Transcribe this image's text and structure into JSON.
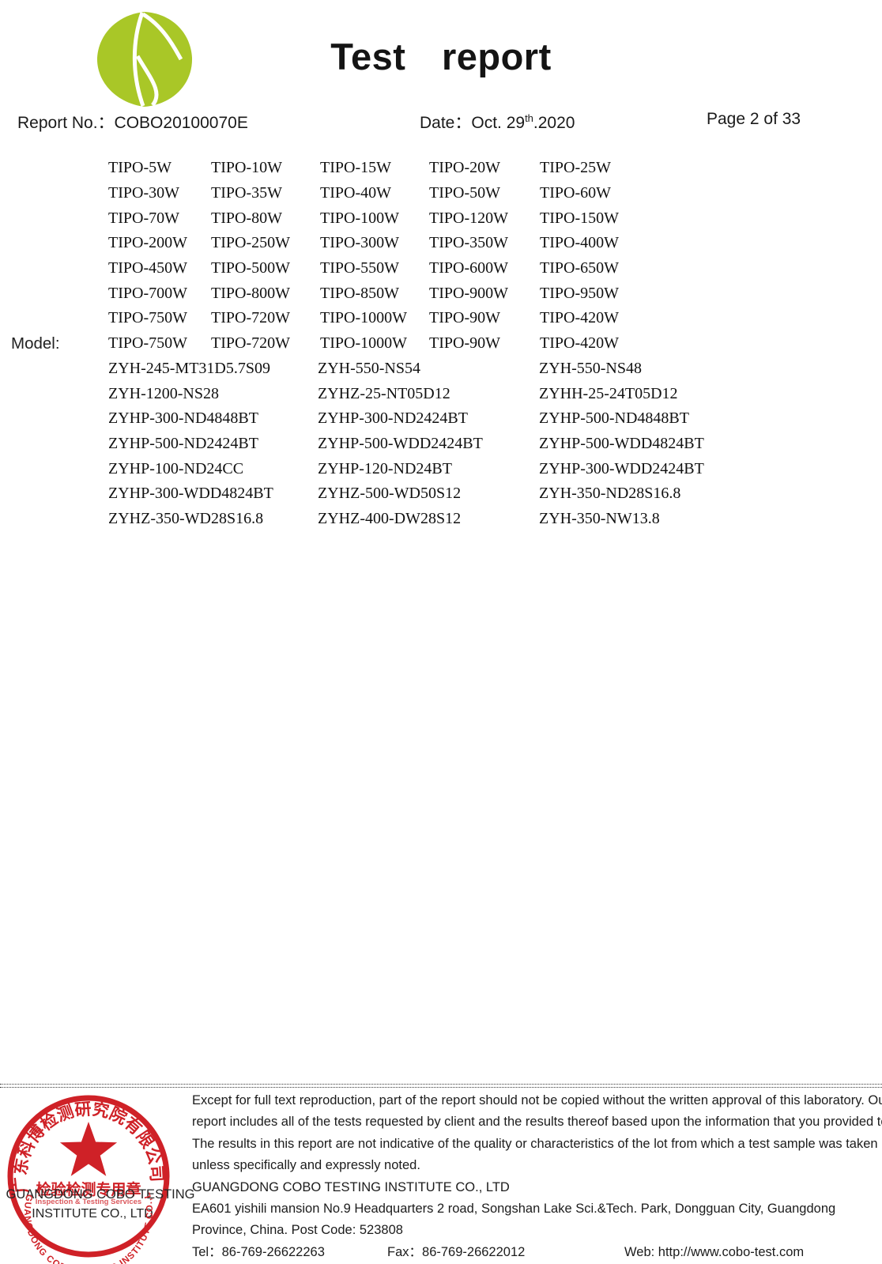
{
  "header": {
    "title": "Test  report",
    "report_no_label": "Report No.：",
    "report_no": "COBO20100070E",
    "date_label": "Date：",
    "date_prefix": "Oct. 29",
    "date_superscript": "th",
    "date_suffix": ".2020",
    "page_info": "Page 2 of 33"
  },
  "logo": {
    "name": "cobo-green-leaf-logo",
    "green": "#a9c727"
  },
  "model_section": {
    "label": "Model:",
    "rows5": [
      [
        "TIPO-5W",
        "TIPO-10W",
        "TIPO-15W",
        "TIPO-20W",
        "TIPO-25W"
      ],
      [
        "TIPO-30W",
        "TIPO-35W",
        "TIPO-40W",
        "TIPO-50W",
        "TIPO-60W"
      ],
      [
        "TIPO-70W",
        "TIPO-80W",
        "TIPO-100W",
        "TIPO-120W",
        "TIPO-150W"
      ],
      [
        "TIPO-200W",
        "TIPO-250W",
        "TIPO-300W",
        "TIPO-350W",
        "TIPO-400W"
      ],
      [
        "TIPO-450W",
        "TIPO-500W",
        "TIPO-550W",
        "TIPO-600W",
        "TIPO-650W"
      ],
      [
        "TIPO-700W",
        "TIPO-800W",
        "TIPO-850W",
        "TIPO-900W",
        "TIPO-950W"
      ],
      [
        "TIPO-750W",
        "TIPO-720W",
        "TIPO-1000W",
        "TIPO-90W",
        "TIPO-420W"
      ],
      [
        "TIPO-750W",
        "TIPO-720W",
        "TIPO-1000W",
        "TIPO-90W",
        "TIPO-420W"
      ]
    ],
    "rows3": [
      [
        "ZYH-245-MT31D5.7S09",
        "ZYH-550-NS54",
        "ZYH-550-NS48"
      ],
      [
        "ZYH-1200-NS28",
        "ZYHZ-25-NT05D12",
        "ZYHH-25-24T05D12"
      ],
      [
        "ZYHP-300-ND4848BT",
        "ZYHP-300-ND2424BT",
        "ZYHP-500-ND4848BT"
      ],
      [
        "ZYHP-500-ND2424BT",
        "ZYHP-500-WDD2424BT",
        "ZYHP-500-WDD4824BT"
      ],
      [
        "ZYHP-100-ND24CC",
        "ZYHP-120-ND24BT",
        "ZYHP-300-WDD2424BT"
      ],
      [
        "ZYHP-300-WDD4824BT",
        "ZYHZ-500-WD50S12",
        "ZYH-350-ND28S16.8"
      ],
      [
        "ZYHZ-350-WD28S16.8",
        "ZYHZ-400-DW28S12",
        "ZYH-350-NW13.8"
      ]
    ]
  },
  "footer": {
    "disclaimer_lines": [
      "Except for full text reproduction, part of the report should not be copied without the written approval of this laboratory. Our",
      "report includes all of the tests requested by client and the results thereof based upon the information that you provided to us.",
      "The results in this report are not indicative of the quality or characteristics of the lot from which a test sample was taken",
      "unless specifically and expressly noted."
    ],
    "company": "GUANGDONG COBO TESTING INSTITUTE CO., LTD",
    "address_line1": "EA601 yishili mansion No.9 Headquarters 2 road, Songshan Lake Sci.&Tech. Park, Dongguan City, Guangdong",
    "address_line2": "Province, China. Post Code: 523808",
    "tel_label": "Tel：",
    "tel": "86-769-26622263",
    "fax_label": "Fax：",
    "fax": "86-769-26622012",
    "web_label": "Web: ",
    "web": "http://www.cobo-test.com"
  },
  "stamp": {
    "red": "#cf2127",
    "chinese_arc": "广东科博检测研究院有限公司",
    "chinese_line": "检验检测专用章",
    "english_faint": "Inspection & Testing Services",
    "english_line1": "GUANGDONG COBO TESTING",
    "english_line2": "INSTITUTE CO., LTD",
    "english_arc": "GUANGDONG COBO TESTING INSTITUTE CO.,LTD"
  }
}
